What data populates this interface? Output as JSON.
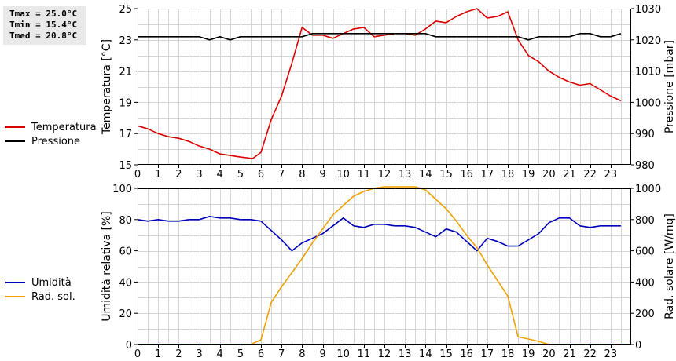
{
  "stats": {
    "tmax": "Tmax = 25.0°C",
    "tmin": "Tmin = 15.4°C",
    "tmed": "Tmed = 20.8°C"
  },
  "legends": {
    "top": [
      {
        "label": "Temperatura",
        "color": "#dd0000"
      },
      {
        "label": "Pressione",
        "color": "#000000"
      }
    ],
    "bottom": [
      {
        "label": "Umidità",
        "color": "#0000bb"
      },
      {
        "label": "Rad. sol.",
        "color": "#f0a000"
      }
    ]
  },
  "chart_data": [
    {
      "type": "line",
      "xlim": [
        0,
        24
      ],
      "x_ticks": [
        "0",
        "1",
        "2",
        "3",
        "4",
        "5",
        "6",
        "7",
        "8",
        "9",
        "10",
        "11",
        "12",
        "13",
        "14",
        "15",
        "16",
        "17",
        "18",
        "19",
        "20",
        "21",
        "22",
        "23"
      ],
      "y_left": {
        "label": "Temperatura [°C]",
        "lim": [
          15,
          25
        ],
        "ticks": [
          "15",
          "17",
          "19",
          "21",
          "23",
          "25"
        ]
      },
      "y_right": {
        "label": "Pressione [mbar]",
        "lim": [
          980,
          1030
        ],
        "ticks": [
          "980",
          "990",
          "1000",
          "1010",
          "1020",
          "1030"
        ]
      },
      "grid": true,
      "legend_position": "left",
      "series": [
        {
          "name": "Temperatura",
          "axis": "left",
          "color": "#dd0000",
          "x": [
            0,
            0.5,
            1,
            1.5,
            2,
            2.5,
            3,
            3.5,
            4,
            4.5,
            5,
            5.6,
            6,
            6.5,
            7,
            7.5,
            8,
            8.5,
            9,
            9.5,
            10,
            10.5,
            11,
            11.5,
            12,
            12.5,
            13,
            13.5,
            14,
            14.5,
            15,
            15.5,
            16,
            16.5,
            17,
            17.5,
            18,
            18.5,
            19,
            19.5,
            20,
            20.5,
            21,
            21.5,
            22,
            22.5,
            23,
            23.5
          ],
          "y": [
            17.5,
            17.3,
            17.0,
            16.8,
            16.7,
            16.5,
            16.2,
            16.0,
            15.7,
            15.6,
            15.5,
            15.4,
            15.8,
            17.9,
            19.4,
            21.5,
            23.8,
            23.3,
            23.3,
            23.1,
            23.4,
            23.7,
            23.8,
            23.2,
            23.3,
            23.4,
            23.4,
            23.3,
            23.7,
            24.2,
            24.1,
            24.5,
            24.8,
            25.0,
            24.4,
            24.5,
            24.8,
            23.0,
            22.0,
            21.6,
            21.0,
            20.6,
            20.3,
            20.1,
            20.2,
            19.8,
            19.4,
            19.1
          ]
        },
        {
          "name": "Pressione",
          "axis": "right",
          "color": "#000000",
          "x": [
            0,
            0.5,
            1,
            2,
            3,
            3.5,
            4,
            4.5,
            5,
            6,
            7,
            8,
            8.5,
            9,
            10,
            11,
            12,
            13,
            14,
            14.5,
            15,
            16,
            17,
            18,
            18.5,
            19,
            19.5,
            20,
            21,
            21.5,
            22,
            22.5,
            23,
            23.5
          ],
          "y": [
            1021,
            1021,
            1021,
            1021,
            1021,
            1020,
            1021,
            1020,
            1021,
            1021,
            1021,
            1021,
            1022,
            1022,
            1022,
            1022,
            1022,
            1022,
            1022,
            1021,
            1021,
            1021,
            1021,
            1021,
            1021,
            1020,
            1021,
            1021,
            1021,
            1022,
            1022,
            1021,
            1021,
            1022
          ]
        }
      ]
    },
    {
      "type": "line",
      "xlim": [
        0,
        24
      ],
      "x_ticks": [
        "0",
        "1",
        "2",
        "3",
        "4",
        "5",
        "6",
        "7",
        "8",
        "9",
        "10",
        "11",
        "12",
        "13",
        "14",
        "15",
        "16",
        "17",
        "18",
        "19",
        "20",
        "21",
        "22",
        "23"
      ],
      "y_left": {
        "label": "Umidità relativa [%]",
        "lim": [
          0,
          100
        ],
        "ticks": [
          "0",
          "20",
          "40",
          "60",
          "80",
          "100"
        ]
      },
      "y_right": {
        "label": "Rad. solare [W/mq]",
        "lim": [
          0,
          1000
        ],
        "ticks": [
          "0",
          "200",
          "400",
          "600",
          "800",
          "1000"
        ]
      },
      "grid": true,
      "legend_position": "left",
      "series": [
        {
          "name": "Umidità",
          "axis": "left",
          "color": "#0000bb",
          "x": [
            0,
            0.5,
            1,
            1.5,
            2,
            2.5,
            3,
            3.5,
            4,
            4.5,
            5,
            5.5,
            6,
            6.5,
            7,
            7.5,
            8,
            8.5,
            9,
            9.5,
            10,
            10.5,
            11,
            11.5,
            12,
            12.5,
            13,
            13.5,
            14,
            14.5,
            15,
            15.5,
            16,
            16.5,
            17,
            17.5,
            18,
            18.5,
            19,
            19.5,
            20,
            20.5,
            21,
            21.5,
            22,
            22.5,
            23,
            23.5
          ],
          "y": [
            80,
            79,
            80,
            79,
            79,
            80,
            80,
            82,
            81,
            81,
            80,
            80,
            79,
            73,
            67,
            60,
            65,
            68,
            71,
            76,
            81,
            76,
            75,
            77,
            77,
            76,
            76,
            75,
            72,
            69,
            74,
            72,
            66,
            60,
            68,
            66,
            63,
            63,
            67,
            71,
            78,
            81,
            81,
            76,
            75,
            76,
            76,
            76
          ]
        },
        {
          "name": "Rad. sol.",
          "axis": "right",
          "color": "#f0a000",
          "x": [
            0,
            1,
            2,
            3,
            4,
            5,
            5.5,
            6,
            6.5,
            7,
            7.5,
            8,
            8.5,
            9,
            9.5,
            10,
            10.5,
            11,
            11.5,
            12,
            12.5,
            13,
            13.5,
            14,
            14.5,
            15,
            15.5,
            16,
            16.5,
            17,
            17.5,
            18,
            18.5,
            19,
            19.5,
            20,
            21,
            22,
            23,
            23.5
          ],
          "y": [
            0,
            0,
            0,
            0,
            0,
            0,
            0,
            30,
            270,
            370,
            460,
            550,
            650,
            740,
            830,
            890,
            950,
            980,
            1000,
            1010,
            1010,
            1010,
            1010,
            990,
            930,
            870,
            790,
            700,
            620,
            510,
            410,
            310,
            50,
            35,
            20,
            0,
            0,
            0,
            0,
            0
          ]
        }
      ]
    }
  ]
}
